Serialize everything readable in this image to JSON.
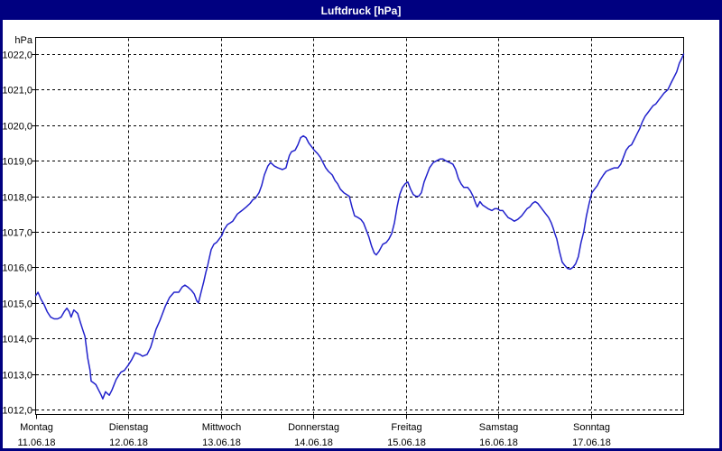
{
  "window": {
    "title": "Luftdruck [hPa]"
  },
  "colors": {
    "titlebar_bg": "#000080",
    "title_text": "#ffffff",
    "window_border": "#000080",
    "plot_border": "#000000",
    "grid": "#000000",
    "line": "#2222cc",
    "plot_bg": "#ffffff"
  },
  "chart_data": {
    "type": "line",
    "title": "Luftdruck [hPa]",
    "y_unit_label": "hPa",
    "ylabel": "Luftdruck",
    "xlabel": "",
    "grid": "dashed",
    "legend": "none",
    "xlim_hours": [
      0,
      168
    ],
    "ylim": [
      1011.85,
      1022.45
    ],
    "y_ticks": [
      {
        "value": 1022,
        "label": "1022,0"
      },
      {
        "value": 1021,
        "label": "1021,0"
      },
      {
        "value": 1020,
        "label": "1020,0"
      },
      {
        "value": 1019,
        "label": "1019,0"
      },
      {
        "value": 1018,
        "label": "1018,0"
      },
      {
        "value": 1017,
        "label": "1017,0"
      },
      {
        "value": 1016,
        "label": "1016,0"
      },
      {
        "value": 1015,
        "label": "1015,0"
      },
      {
        "value": 1014,
        "label": "1014,0"
      },
      {
        "value": 1013,
        "label": "1013,0"
      },
      {
        "value": 1012,
        "label": "1012,0"
      }
    ],
    "x_days": [
      {
        "name": "Montag",
        "date": "11.06.18"
      },
      {
        "name": "Dienstag",
        "date": "12.06.18"
      },
      {
        "name": "Mittwoch",
        "date": "13.06.18"
      },
      {
        "name": "Donnerstag",
        "date": "14.06.18"
      },
      {
        "name": "Freitag",
        "date": "15.06.18"
      },
      {
        "name": "Samstag",
        "date": "16.06.18"
      },
      {
        "name": "Sonntag",
        "date": "17.06.18"
      }
    ],
    "series": [
      {
        "name": "Luftdruck",
        "unit": "hPa",
        "points": [
          [
            0,
            1015.2
          ],
          [
            0.6,
            1015.3
          ],
          [
            1.4,
            1015.1
          ],
          [
            2.2,
            1014.95
          ],
          [
            3,
            1014.75
          ],
          [
            3.9,
            1014.6
          ],
          [
            4.8,
            1014.55
          ],
          [
            5.7,
            1014.55
          ],
          [
            6.6,
            1014.6
          ],
          [
            7.4,
            1014.75
          ],
          [
            8.1,
            1014.85
          ],
          [
            8.7,
            1014.75
          ],
          [
            9.2,
            1014.6
          ],
          [
            9.9,
            1014.8
          ],
          [
            10.4,
            1014.75
          ],
          [
            10.9,
            1014.7
          ],
          [
            11.6,
            1014.45
          ],
          [
            12.2,
            1014.25
          ],
          [
            12.8,
            1014.05
          ],
          [
            13.5,
            1013.45
          ],
          [
            14.1,
            1013.1
          ],
          [
            14.4,
            1012.8
          ],
          [
            15,
            1012.75
          ],
          [
            15.6,
            1012.7
          ],
          [
            16.3,
            1012.55
          ],
          [
            17,
            1012.4
          ],
          [
            17.4,
            1012.3
          ],
          [
            18.1,
            1012.5
          ],
          [
            18.6,
            1012.45
          ],
          [
            19.1,
            1012.4
          ],
          [
            19.8,
            1012.55
          ],
          [
            20.9,
            1012.85
          ],
          [
            22.1,
            1013.05
          ],
          [
            23,
            1013.1
          ],
          [
            24,
            1013.25
          ],
          [
            24.9,
            1013.4
          ],
          [
            25.8,
            1013.6
          ],
          [
            27,
            1013.55
          ],
          [
            27.7,
            1013.5
          ],
          [
            28.9,
            1013.55
          ],
          [
            29.8,
            1013.75
          ],
          [
            30.5,
            1014
          ],
          [
            31.2,
            1014.25
          ],
          [
            32.2,
            1014.5
          ],
          [
            32.9,
            1014.7
          ],
          [
            33.6,
            1014.9
          ],
          [
            34.7,
            1015.15
          ],
          [
            35.9,
            1015.3
          ],
          [
            37.1,
            1015.3
          ],
          [
            38,
            1015.45
          ],
          [
            38.7,
            1015.5
          ],
          [
            39.4,
            1015.45
          ],
          [
            40.4,
            1015.35
          ],
          [
            41.1,
            1015.25
          ],
          [
            41.8,
            1015.05
          ],
          [
            42.2,
            1015
          ],
          [
            42.9,
            1015.3
          ],
          [
            43.6,
            1015.6
          ],
          [
            44.1,
            1015.85
          ],
          [
            44.6,
            1016.05
          ],
          [
            45,
            1016.25
          ],
          [
            45.5,
            1016.5
          ],
          [
            46.2,
            1016.65
          ],
          [
            46.9,
            1016.7
          ],
          [
            47.6,
            1016.8
          ],
          [
            48.3,
            1016.9
          ],
          [
            48.8,
            1017.05
          ],
          [
            49.7,
            1017.2
          ],
          [
            50.4,
            1017.25
          ],
          [
            51.1,
            1017.3
          ],
          [
            52.3,
            1017.5
          ],
          [
            53.5,
            1017.6
          ],
          [
            54.6,
            1017.7
          ],
          [
            55.6,
            1017.8
          ],
          [
            56.3,
            1017.9
          ],
          [
            57,
            1017.95
          ],
          [
            57.9,
            1018.1
          ],
          [
            58.6,
            1018.3
          ],
          [
            59.3,
            1018.6
          ],
          [
            60.2,
            1018.85
          ],
          [
            60.9,
            1018.95
          ],
          [
            61.9,
            1018.85
          ],
          [
            62.8,
            1018.8
          ],
          [
            64,
            1018.75
          ],
          [
            64.9,
            1018.8
          ],
          [
            65.4,
            1019
          ],
          [
            65.8,
            1019.15
          ],
          [
            66.3,
            1019.25
          ],
          [
            67.3,
            1019.3
          ],
          [
            68,
            1019.45
          ],
          [
            68.7,
            1019.65
          ],
          [
            69.4,
            1019.7
          ],
          [
            70.1,
            1019.65
          ],
          [
            70.8,
            1019.5
          ],
          [
            71.5,
            1019.4
          ],
          [
            72.2,
            1019.3
          ],
          [
            73.1,
            1019.2
          ],
          [
            73.8,
            1019.1
          ],
          [
            74.5,
            1018.95
          ],
          [
            75.2,
            1018.8
          ],
          [
            75.9,
            1018.7
          ],
          [
            76.9,
            1018.6
          ],
          [
            77.6,
            1018.45
          ],
          [
            78.3,
            1018.35
          ],
          [
            79,
            1018.2
          ],
          [
            79.9,
            1018.1
          ],
          [
            80.6,
            1018.05
          ],
          [
            81.3,
            1018
          ],
          [
            82,
            1017.7
          ],
          [
            82.7,
            1017.45
          ],
          [
            83.6,
            1017.4
          ],
          [
            84.3,
            1017.35
          ],
          [
            85,
            1017.25
          ],
          [
            85.7,
            1017.05
          ],
          [
            86.4,
            1016.85
          ],
          [
            87.1,
            1016.6
          ],
          [
            87.8,
            1016.4
          ],
          [
            88.3,
            1016.35
          ],
          [
            89,
            1016.45
          ],
          [
            90,
            1016.65
          ],
          [
            90.9,
            1016.7
          ],
          [
            91.6,
            1016.8
          ],
          [
            92.3,
            1016.95
          ],
          [
            93,
            1017.25
          ],
          [
            93.7,
            1017.7
          ],
          [
            94.4,
            1018.05
          ],
          [
            95.1,
            1018.25
          ],
          [
            95.8,
            1018.35
          ],
          [
            96.5,
            1018.4
          ],
          [
            97.2,
            1018.2
          ],
          [
            97.9,
            1018.05
          ],
          [
            98.6,
            1018
          ],
          [
            99.3,
            1018
          ],
          [
            100,
            1018.1
          ],
          [
            100.7,
            1018.4
          ],
          [
            101.4,
            1018.6
          ],
          [
            102.1,
            1018.8
          ],
          [
            103.1,
            1018.95
          ],
          [
            104,
            1019
          ],
          [
            104.9,
            1019.05
          ],
          [
            105.6,
            1019.05
          ],
          [
            106.3,
            1019
          ],
          [
            107.3,
            1018.95
          ],
          [
            108.2,
            1018.9
          ],
          [
            108.9,
            1018.75
          ],
          [
            109.6,
            1018.5
          ],
          [
            110.3,
            1018.35
          ],
          [
            111,
            1018.25
          ],
          [
            112,
            1018.25
          ],
          [
            112.7,
            1018.15
          ],
          [
            113.4,
            1018
          ],
          [
            114.1,
            1017.8
          ],
          [
            114.5,
            1017.7
          ],
          [
            115.2,
            1017.85
          ],
          [
            115.9,
            1017.75
          ],
          [
            116.6,
            1017.7
          ],
          [
            117.3,
            1017.65
          ],
          [
            118.3,
            1017.6
          ],
          [
            119,
            1017.65
          ],
          [
            119.7,
            1017.65
          ],
          [
            120.4,
            1017.6
          ],
          [
            121.1,
            1017.6
          ],
          [
            121.8,
            1017.5
          ],
          [
            122.5,
            1017.4
          ],
          [
            123.4,
            1017.35
          ],
          [
            124.1,
            1017.3
          ],
          [
            125,
            1017.35
          ],
          [
            126,
            1017.45
          ],
          [
            126.7,
            1017.55
          ],
          [
            127.4,
            1017.65
          ],
          [
            128.1,
            1017.7
          ],
          [
            128.8,
            1017.8
          ],
          [
            129.5,
            1017.85
          ],
          [
            130.2,
            1017.8
          ],
          [
            130.9,
            1017.7
          ],
          [
            131.6,
            1017.6
          ],
          [
            132.3,
            1017.5
          ],
          [
            133,
            1017.4
          ],
          [
            133.7,
            1017.25
          ],
          [
            134.2,
            1017.1
          ],
          [
            134.6,
            1016.95
          ],
          [
            135.1,
            1016.8
          ],
          [
            135.8,
            1016.45
          ],
          [
            136.5,
            1016.15
          ],
          [
            137.2,
            1016.05
          ],
          [
            137.9,
            1015.97
          ],
          [
            138.6,
            1015.95
          ],
          [
            139.3,
            1016
          ],
          [
            140,
            1016.1
          ],
          [
            140.7,
            1016.3
          ],
          [
            141.4,
            1016.7
          ],
          [
            142.1,
            1017
          ],
          [
            142.8,
            1017.45
          ],
          [
            143.5,
            1017.8
          ],
          [
            144.2,
            1018.1
          ],
          [
            144.9,
            1018.2
          ],
          [
            145.6,
            1018.3
          ],
          [
            146.3,
            1018.45
          ],
          [
            147.2,
            1018.6
          ],
          [
            147.9,
            1018.7
          ],
          [
            148.9,
            1018.75
          ],
          [
            150,
            1018.8
          ],
          [
            151,
            1018.8
          ],
          [
            151.7,
            1018.9
          ],
          [
            152.4,
            1019.1
          ],
          [
            153.1,
            1019.3
          ],
          [
            153.8,
            1019.4
          ],
          [
            154.5,
            1019.45
          ],
          [
            155.2,
            1019.6
          ],
          [
            155.9,
            1019.75
          ],
          [
            156.6,
            1019.9
          ],
          [
            157.3,
            1020.1
          ],
          [
            158,
            1020.25
          ],
          [
            158.7,
            1020.35
          ],
          [
            159.4,
            1020.45
          ],
          [
            160.1,
            1020.55
          ],
          [
            160.8,
            1020.6
          ],
          [
            161.5,
            1020.7
          ],
          [
            162.2,
            1020.8
          ],
          [
            162.9,
            1020.9
          ],
          [
            163.9,
            1021
          ],
          [
            164.8,
            1021.2
          ],
          [
            165.5,
            1021.35
          ],
          [
            166.2,
            1021.5
          ],
          [
            166.9,
            1021.75
          ],
          [
            167.4,
            1021.85
          ],
          [
            168,
            1022
          ]
        ]
      }
    ]
  }
}
